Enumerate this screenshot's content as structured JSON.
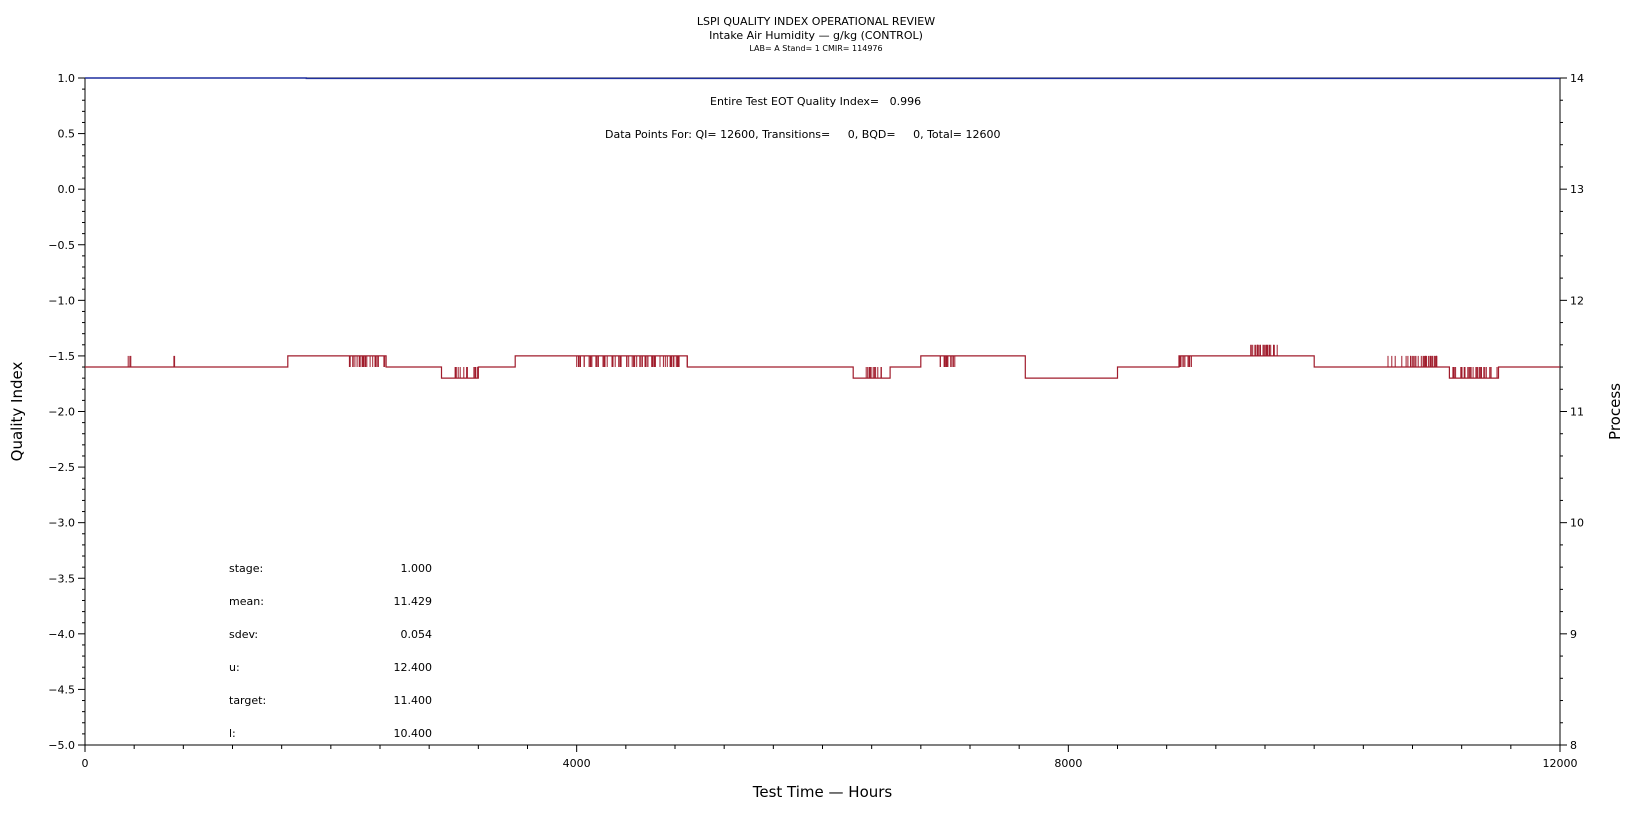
{
  "chart_data": {
    "type": "line",
    "title": "LSPI QUALITY INDEX OPERATIONAL REVIEW",
    "subtitle": "Intake Air Humidity — g/kg (CONTROL)",
    "subtitle2": "LAB= A Stand= 1 CMIR= 114976",
    "xlabel": "Test Time — Hours",
    "ylabel": "Quality Index",
    "y2label": "Process",
    "xlim": [
      0,
      12000
    ],
    "ylim": [
      -5.0,
      1.0
    ],
    "y2lim": [
      8,
      14
    ],
    "x_ticks": [
      "0",
      "4000",
      "8000",
      "12000"
    ],
    "x_tick_values": [
      0,
      4000,
      8000,
      12000
    ],
    "y_ticks": [
      "1.0",
      "0.5",
      "0.0",
      "−0.5",
      "−1.0",
      "−1.5",
      "−2.0",
      "−2.5",
      "−3.0",
      "−3.5",
      "−4.0",
      "−4.5",
      "−5.0"
    ],
    "y_tick_values": [
      1.0,
      0.5,
      0.0,
      -0.5,
      -1.0,
      -1.5,
      -2.0,
      -2.5,
      -3.0,
      -3.5,
      -4.0,
      -4.5,
      -5.0
    ],
    "y2_ticks": [
      "14",
      "13",
      "12",
      "11",
      "10",
      "9",
      "8"
    ],
    "y2_tick_values": [
      14,
      13,
      12,
      11,
      10,
      9,
      8
    ],
    "annotations": {
      "eot": "Entire Test EOT Quality Index=   0.996",
      "points": "Data Points For: QI= 12600, Transitions=     0, BQD=     0, Total= 12600"
    },
    "stats": [
      {
        "label": "stage:",
        "value": "1.000"
      },
      {
        "label": "mean:",
        "value": "11.429"
      },
      {
        "label": "sdev:",
        "value": "0.054"
      },
      {
        "label": "u:",
        "value": "12.400"
      },
      {
        "label": "target:",
        "value": "11.400"
      },
      {
        "label": "l:",
        "value": "10.400"
      }
    ],
    "series": [
      {
        "axis": "left",
        "color": "#1f2f9f",
        "x": [
          0,
          1800,
          1800,
          12000
        ],
        "y": [
          1.0,
          1.0,
          0.996,
          0.996
        ]
      },
      {
        "axis": "right",
        "color": "#a01c2c",
        "baseline": 11.4,
        "segments": [
          {
            "x0": 1650,
            "x1": 2450,
            "y": 11.5
          },
          {
            "x0": 2900,
            "x1": 3200,
            "y": 11.3
          },
          {
            "x0": 3500,
            "x1": 4900,
            "y": 11.5
          },
          {
            "x0": 6250,
            "x1": 6550,
            "y": 11.3
          },
          {
            "x0": 6800,
            "x1": 7650,
            "y": 11.5
          },
          {
            "x0": 7650,
            "x1": 8400,
            "y": 11.3
          },
          {
            "x0": 8900,
            "x1": 9000,
            "y": 11.5
          },
          {
            "x0": 9000,
            "x1": 10000,
            "y": 11.5
          },
          {
            "x0": 11100,
            "x1": 11500,
            "y": 11.3
          }
        ],
        "spikes": [
          {
            "x0": 350,
            "x1": 380,
            "y": 11.5
          },
          {
            "x0": 720,
            "x1": 730,
            "y": 11.5
          },
          {
            "x0": 2150,
            "x1": 2480,
            "y": 11.4
          },
          {
            "x0": 3000,
            "x1": 3200,
            "y": 11.4
          },
          {
            "x0": 4000,
            "x1": 4900,
            "y": 11.4
          },
          {
            "x0": 6350,
            "x1": 6500,
            "y": 11.4
          },
          {
            "x0": 6950,
            "x1": 7100,
            "y": 11.4
          },
          {
            "x0": 8400,
            "x1": 8700,
            "y": 11.4
          },
          {
            "x0": 8900,
            "x1": 9000,
            "y": 11.4
          },
          {
            "x0": 9450,
            "x1": 9700,
            "y": 11.6
          },
          {
            "x0": 10600,
            "x1": 11000,
            "y": 11.5
          },
          {
            "x0": 11100,
            "x1": 11500,
            "y": 11.4
          }
        ]
      }
    ]
  }
}
